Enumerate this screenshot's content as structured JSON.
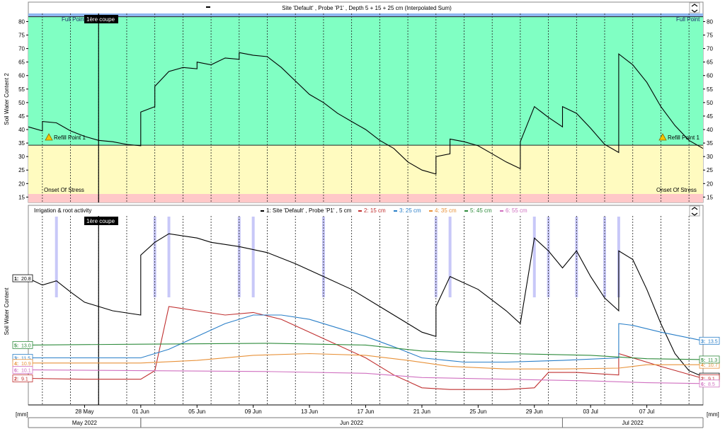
{
  "chart_data": [
    {
      "type": "line",
      "title": "Site 'Default' , Probe 'P1' , Depth 5 + 15 + 25 cm (Interpolated Sum)",
      "ylabel": "Soil Water Content 2",
      "ylim": [
        13,
        83
      ],
      "yticks": [
        15,
        20,
        25,
        30,
        35,
        40,
        45,
        50,
        55,
        60,
        65,
        70,
        75,
        80
      ],
      "xlim": [
        "2022-05-24",
        "2022-07-11"
      ],
      "zones": [
        {
          "label": "Full Point",
          "from": 81.8,
          "to": 83,
          "color": "#8fb7f0"
        },
        {
          "label": "",
          "from": 34.2,
          "to": 81.8,
          "color": "#80ffc3"
        },
        {
          "label": "",
          "from": 13.0,
          "to": 34.2,
          "color": "#fffbc0"
        },
        {
          "label": "Onset Of Stress",
          "from": 11.0,
          "to": 13.0,
          "color": "#ffc8c8"
        }
      ],
      "refill_label": "Refill Point 1",
      "series": [
        {
          "values": [
            [
              "2022-05-24",
              41.0
            ],
            [
              "2022-05-25",
              39.5
            ],
            [
              "2022-05-25",
              43.0
            ],
            [
              "2022-05-26",
              42.5
            ],
            [
              "2022-05-27",
              39.5
            ],
            [
              "2022-05-28",
              37.5
            ],
            [
              "2022-05-29",
              36.0
            ],
            [
              "2022-05-30",
              35.5
            ],
            [
              "2022-05-31",
              34.5
            ],
            [
              "2022-06-01",
              34.0
            ],
            [
              "2022-06-01",
              46.5
            ],
            [
              "2022-06-02",
              48.5
            ],
            [
              "2022-06-02",
              56.0
            ],
            [
              "2022-06-03",
              61.5
            ],
            [
              "2022-06-04",
              63.0
            ],
            [
              "2022-06-05",
              62.5
            ],
            [
              "2022-06-05",
              65.0
            ],
            [
              "2022-06-06",
              64.0
            ],
            [
              "2022-06-07",
              66.5
            ],
            [
              "2022-06-08",
              66.0
            ],
            [
              "2022-06-08",
              68.5
            ],
            [
              "2022-06-09",
              67.5
            ],
            [
              "2022-06-10",
              67.0
            ],
            [
              "2022-06-11",
              63.0
            ],
            [
              "2022-06-12",
              58.0
            ],
            [
              "2022-06-13",
              53.0
            ],
            [
              "2022-06-14",
              50.0
            ],
            [
              "2022-06-15",
              46.0
            ],
            [
              "2022-06-16",
              43.0
            ],
            [
              "2022-06-17",
              40.0
            ],
            [
              "2022-06-18",
              36.0
            ],
            [
              "2022-06-19",
              33.0
            ],
            [
              "2022-06-20",
              28.0
            ],
            [
              "2022-06-21",
              25.0
            ],
            [
              "2022-06-22",
              23.5
            ],
            [
              "2022-06-22",
              30.0
            ],
            [
              "2022-06-23",
              31.0
            ],
            [
              "2022-06-23",
              36.5
            ],
            [
              "2022-06-24",
              35.5
            ],
            [
              "2022-06-25",
              34.0
            ],
            [
              "2022-06-26",
              31.0
            ],
            [
              "2022-06-27",
              28.0
            ],
            [
              "2022-06-28",
              25.5
            ],
            [
              "2022-06-28",
              35.5
            ],
            [
              "2022-06-29",
              48.5
            ],
            [
              "2022-06-30",
              44.5
            ],
            [
              "2022-07-01",
              41.0
            ],
            [
              "2022-07-01",
              48.5
            ],
            [
              "2022-07-02",
              46.0
            ],
            [
              "2022-07-03",
              40.5
            ],
            [
              "2022-07-04",
              34.5
            ],
            [
              "2022-07-05",
              31.5
            ],
            [
              "2022-07-05",
              68.0
            ],
            [
              "2022-07-06",
              64.0
            ],
            [
              "2022-07-07",
              57.5
            ],
            [
              "2022-07-08",
              48.5
            ],
            [
              "2022-07-09",
              41.5
            ],
            [
              "2022-07-10",
              36.0
            ],
            [
              "2022-07-11",
              33.0
            ]
          ]
        }
      ],
      "annotation": "1ère coupe",
      "annotation_date": "2022-05-29"
    },
    {
      "type": "line",
      "title": "Irrigation & root activity",
      "ylabel": "Soil Water Content",
      "xlim": [
        "2022-05-24",
        "2022-07-11"
      ],
      "legend_position": "top",
      "series": [
        {
          "name": "1: Site 'Default' , Probe 'P1' , 5 cm",
          "tag": "1:",
          "start_label": "20.8",
          "end_label": "9.3",
          "color": "#000000",
          "values": [
            [
              "2022-05-24",
              20.8
            ],
            [
              "2022-05-25",
              20.0
            ],
            [
              "2022-05-26",
              20.5
            ],
            [
              "2022-05-27",
              19.2
            ],
            [
              "2022-05-28",
              18.0
            ],
            [
              "2022-05-30",
              17.0
            ],
            [
              "2022-06-01",
              16.5
            ],
            [
              "2022-06-01",
              23.5
            ],
            [
              "2022-06-02",
              25.0
            ],
            [
              "2022-06-03",
              26.0
            ],
            [
              "2022-06-05",
              25.5
            ],
            [
              "2022-06-06",
              25.0
            ],
            [
              "2022-06-08",
              24.5
            ],
            [
              "2022-06-10",
              23.8
            ],
            [
              "2022-06-12",
              22.5
            ],
            [
              "2022-06-14",
              21.0
            ],
            [
              "2022-06-16",
              19.5
            ],
            [
              "2022-06-18",
              17.5
            ],
            [
              "2022-06-20",
              15.5
            ],
            [
              "2022-06-21",
              14.5
            ],
            [
              "2022-06-22",
              14.0
            ],
            [
              "2022-06-22",
              17.5
            ],
            [
              "2022-06-23",
              21.0
            ],
            [
              "2022-06-25",
              19.5
            ],
            [
              "2022-06-27",
              17.0
            ],
            [
              "2022-06-28",
              15.5
            ],
            [
              "2022-06-29",
              25.5
            ],
            [
              "2022-06-30",
              24.0
            ],
            [
              "2022-07-01",
              22.0
            ],
            [
              "2022-07-02",
              24.0
            ],
            [
              "2022-07-03",
              21.0
            ],
            [
              "2022-07-04",
              18.5
            ],
            [
              "2022-07-05",
              17.0
            ],
            [
              "2022-07-05",
              24.0
            ],
            [
              "2022-07-06",
              23.0
            ],
            [
              "2022-07-07",
              19.5
            ],
            [
              "2022-07-08",
              15.5
            ],
            [
              "2022-07-09",
              12.0
            ],
            [
              "2022-07-10",
              10.0
            ],
            [
              "2022-07-11",
              9.3
            ]
          ]
        },
        {
          "name": "2: 15 cm",
          "tag": "2:",
          "start_label": "9.1",
          "end_label": "9.1",
          "color": "#c03030",
          "values": [
            [
              "2022-05-24",
              9.1
            ],
            [
              "2022-05-28",
              9.0
            ],
            [
              "2022-06-01",
              9.0
            ],
            [
              "2022-06-02",
              10.0
            ],
            [
              "2022-06-03",
              17.5
            ],
            [
              "2022-06-05",
              17.0
            ],
            [
              "2022-06-07",
              16.5
            ],
            [
              "2022-06-09",
              16.8
            ],
            [
              "2022-06-11",
              16.0
            ],
            [
              "2022-06-13",
              14.5
            ],
            [
              "2022-06-15",
              13.0
            ],
            [
              "2022-06-17",
              11.5
            ],
            [
              "2022-06-19",
              9.5
            ],
            [
              "2022-06-21",
              8.0
            ],
            [
              "2022-06-23",
              7.8
            ],
            [
              "2022-06-25",
              7.8
            ],
            [
              "2022-06-27",
              7.8
            ],
            [
              "2022-06-29",
              8.0
            ],
            [
              "2022-06-30",
              9.8
            ],
            [
              "2022-07-02",
              9.8
            ],
            [
              "2022-07-05",
              9.5
            ],
            [
              "2022-07-05",
              12.0
            ],
            [
              "2022-07-06",
              11.5
            ],
            [
              "2022-07-08",
              10.5
            ],
            [
              "2022-07-11",
              9.1
            ]
          ]
        },
        {
          "name": "3: 25 cm",
          "tag": "3:",
          "start_label": "11.5",
          "end_label": "13.5",
          "color": "#2a7fc8",
          "values": [
            [
              "2022-05-24",
              11.5
            ],
            [
              "2022-05-28",
              11.5
            ],
            [
              "2022-06-01",
              11.5
            ],
            [
              "2022-06-03",
              12.5
            ],
            [
              "2022-06-05",
              14.0
            ],
            [
              "2022-06-07",
              15.5
            ],
            [
              "2022-06-09",
              16.5
            ],
            [
              "2022-06-11",
              16.5
            ],
            [
              "2022-06-13",
              16.0
            ],
            [
              "2022-06-15",
              15.0
            ],
            [
              "2022-06-17",
              14.0
            ],
            [
              "2022-06-19",
              12.8
            ],
            [
              "2022-06-21",
              11.5
            ],
            [
              "2022-06-24",
              11.0
            ],
            [
              "2022-06-27",
              11.0
            ],
            [
              "2022-07-01",
              11.2
            ],
            [
              "2022-07-05",
              11.5
            ],
            [
              "2022-07-05",
              15.5
            ],
            [
              "2022-07-06",
              15.3
            ],
            [
              "2022-07-08",
              14.5
            ],
            [
              "2022-07-11",
              13.5
            ]
          ]
        },
        {
          "name": "4: 35 cm",
          "tag": "4:",
          "start_label": "10.9",
          "end_label": "10.7",
          "color": "#e8923a",
          "values": [
            [
              "2022-05-24",
              10.9
            ],
            [
              "2022-06-01",
              10.9
            ],
            [
              "2022-06-05",
              11.2
            ],
            [
              "2022-06-09",
              11.8
            ],
            [
              "2022-06-13",
              12.0
            ],
            [
              "2022-06-17",
              11.8
            ],
            [
              "2022-06-20",
              11.2
            ],
            [
              "2022-06-23",
              10.5
            ],
            [
              "2022-06-27",
              10.2
            ],
            [
              "2022-07-01",
              10.2
            ],
            [
              "2022-07-05",
              10.3
            ],
            [
              "2022-07-07",
              10.7
            ],
            [
              "2022-07-11",
              10.7
            ]
          ]
        },
        {
          "name": "5: 45 cm",
          "tag": "5:",
          "start_label": "13.0",
          "end_label": "11.3",
          "color": "#2e8b3c",
          "values": [
            [
              "2022-05-24",
              13.0
            ],
            [
              "2022-06-01",
              13.1
            ],
            [
              "2022-06-10",
              13.2
            ],
            [
              "2022-06-17",
              13.0
            ],
            [
              "2022-06-21",
              12.3
            ],
            [
              "2022-06-27",
              12.0
            ],
            [
              "2022-07-03",
              11.8
            ],
            [
              "2022-07-07",
              11.4
            ],
            [
              "2022-07-11",
              11.3
            ]
          ]
        },
        {
          "name": "6: 55 cm",
          "tag": "6:",
          "start_label": "10.1",
          "end_label": "8.5",
          "color": "#d070c0",
          "values": [
            [
              "2022-05-24",
              10.1
            ],
            [
              "2022-06-01",
              10.0
            ],
            [
              "2022-06-10",
              9.9
            ],
            [
              "2022-06-17",
              9.7
            ],
            [
              "2022-06-21",
              9.2
            ],
            [
              "2022-06-27",
              9.0
            ],
            [
              "2022-07-03",
              8.8
            ],
            [
              "2022-07-07",
              8.6
            ],
            [
              "2022-07-11",
              8.5
            ]
          ]
        }
      ],
      "irrigation_events": [
        "2022-05-26",
        "2022-06-02",
        "2022-06-03",
        "2022-06-08",
        "2022-06-09",
        "2022-06-14",
        "2022-06-22",
        "2022-06-23",
        "2022-06-29",
        "2022-06-30",
        "2022-07-02",
        "2022-07-04",
        "2022-07-05"
      ],
      "annotation": "1ère coupe",
      "annotation_date": "2022-05-29"
    }
  ],
  "x_axis": {
    "unit_label": "[mm]",
    "ticks": [
      {
        "date": "2022-05-28",
        "label": "28 May"
      },
      {
        "date": "2022-06-01",
        "label": "01 Jun"
      },
      {
        "date": "2022-06-05",
        "label": "05 Jun"
      },
      {
        "date": "2022-06-09",
        "label": "09 Jun"
      },
      {
        "date": "2022-06-13",
        "label": "13 Jun"
      },
      {
        "date": "2022-06-17",
        "label": "17 Jun"
      },
      {
        "date": "2022-06-21",
        "label": "21 Jun"
      },
      {
        "date": "2022-06-25",
        "label": "25 Jun"
      },
      {
        "date": "2022-06-29",
        "label": "29 Jun"
      },
      {
        "date": "2022-07-03",
        "label": "03 Jul"
      },
      {
        "date": "2022-07-07",
        "label": "07 Jul"
      }
    ],
    "months": [
      {
        "from": "2022-05-24",
        "to": "2022-06-01",
        "label": "May 2022"
      },
      {
        "from": "2022-06-01",
        "to": "2022-07-01",
        "label": "Jun 2022"
      },
      {
        "from": "2022-07-01",
        "to": "2022-07-11",
        "label": "Jul 2022"
      }
    ]
  }
}
